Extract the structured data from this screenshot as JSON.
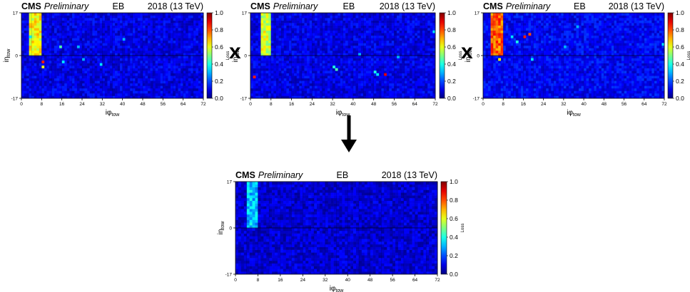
{
  "operators": {
    "times": "x"
  },
  "chart_data": [
    {
      "id": "p1",
      "type": "heatmap",
      "header": {
        "experiment": "CMS",
        "status": "Preliminary",
        "region": "EB",
        "run": "2018 (13 TeV)"
      },
      "xlabel": {
        "main": "iφ",
        "sub": "tow"
      },
      "ylabel": {
        "main": "iη",
        "sub": "tow"
      },
      "colorbar_label": "Loss",
      "xlim": [
        0,
        72
      ],
      "ylim": [
        -17,
        17
      ],
      "zlim": [
        0,
        1
      ],
      "xticks": [
        "0",
        "8",
        "16",
        "24",
        "32",
        "40",
        "48",
        "56",
        "64",
        "72"
      ],
      "yticks": [
        "-17",
        "0",
        "17"
      ],
      "zticks": [
        "0.0",
        "0.2",
        "0.4",
        "0.6",
        "0.8",
        "1.0"
      ],
      "background_level": 0.1,
      "hot_block": {
        "x": [
          3,
          8
        ],
        "y": [
          0,
          17
        ],
        "value": 0.62
      },
      "hot_cells": [
        {
          "x": 3,
          "y": 7,
          "v": 0.35
        },
        {
          "x": 15,
          "y": 3,
          "v": 0.45
        },
        {
          "x": 22,
          "y": 3,
          "v": 0.3
        },
        {
          "x": 16,
          "y": -3,
          "v": 0.35
        },
        {
          "x": 8,
          "y": -3,
          "v": 0.85
        },
        {
          "x": 8,
          "y": -5,
          "v": 0.6
        },
        {
          "x": 31,
          "y": -4,
          "v": 0.35
        },
        {
          "x": 24,
          "y": -2,
          "v": 0.3
        },
        {
          "x": 40,
          "y": 6,
          "v": 0.3
        }
      ]
    },
    {
      "id": "p2",
      "type": "heatmap",
      "header": {
        "experiment": "CMS",
        "status": "Preliminary",
        "region": "EB",
        "run": "2018 (13 TeV)"
      },
      "xlabel": {
        "main": "iφ",
        "sub": "tow"
      },
      "ylabel": {
        "main": "iη",
        "sub": "tow"
      },
      "colorbar_label": "Loss",
      "xlim": [
        0,
        72
      ],
      "ylim": [
        -17,
        17
      ],
      "zlim": [
        0,
        1
      ],
      "xticks": [
        "0",
        "8",
        "16",
        "24",
        "32",
        "40",
        "48",
        "56",
        "64",
        "72"
      ],
      "yticks": [
        "-17",
        "0",
        "17"
      ],
      "zticks": [
        "0.0",
        "0.2",
        "0.4",
        "0.6",
        "0.8",
        "1.0"
      ],
      "background_level": 0.1,
      "hot_block": {
        "x": [
          4,
          8
        ],
        "y": [
          0,
          17
        ],
        "value": 0.58
      },
      "hot_cells": [
        {
          "x": 1,
          "y": -9,
          "v": 0.85
        },
        {
          "x": 32,
          "y": -5,
          "v": 0.4
        },
        {
          "x": 33,
          "y": -6,
          "v": 0.45
        },
        {
          "x": 48,
          "y": -7,
          "v": 0.4
        },
        {
          "x": 49,
          "y": -8,
          "v": 0.35
        },
        {
          "x": 52,
          "y": -8,
          "v": 0.9
        },
        {
          "x": 57,
          "y": -1,
          "v": 0.3
        },
        {
          "x": 42,
          "y": 0,
          "v": 0.3
        },
        {
          "x": 71,
          "y": 9,
          "v": 0.35
        }
      ]
    },
    {
      "id": "p3",
      "type": "heatmap",
      "header": {
        "experiment": "CMS",
        "status": "Preliminary",
        "region": "EB",
        "run": "2018 (13 TeV)"
      },
      "xlabel": {
        "main": "iφ",
        "sub": "tow"
      },
      "ylabel": {
        "main": "iη",
        "sub": "tow"
      },
      "colorbar_label": "Loss",
      "xlim": [
        0,
        72
      ],
      "ylim": [
        -17,
        17
      ],
      "zlim": [
        0,
        1
      ],
      "xticks": [
        "0",
        "8",
        "16",
        "24",
        "32",
        "40",
        "48",
        "56",
        "64",
        "72"
      ],
      "yticks": [
        "-17",
        "0",
        "17"
      ],
      "zticks": [
        "0.0",
        "0.2",
        "0.4",
        "0.6",
        "0.8",
        "1.0"
      ],
      "background_level": 0.12,
      "hot_block": {
        "x": [
          3,
          8
        ],
        "y": [
          0,
          17
        ],
        "value": 0.78
      },
      "hot_cells": [
        {
          "x": 13,
          "y": 5,
          "v": 0.4
        },
        {
          "x": 11,
          "y": 7,
          "v": 0.35
        },
        {
          "x": 16,
          "y": 7,
          "v": 0.85
        },
        {
          "x": 18,
          "y": 8,
          "v": 0.8
        },
        {
          "x": 6,
          "y": -2,
          "v": 0.62
        },
        {
          "x": 19,
          "y": -2,
          "v": 0.35
        },
        {
          "x": 32,
          "y": 3,
          "v": 0.3
        },
        {
          "x": 71,
          "y": 4,
          "v": 0.35
        },
        {
          "x": 37,
          "y": 11,
          "v": 0.3
        }
      ]
    },
    {
      "id": "p4",
      "type": "heatmap",
      "header": {
        "experiment": "CMS",
        "status": "Preliminary",
        "region": "EB",
        "run": "2018 (13 TeV)"
      },
      "xlabel": {
        "main": "iφ",
        "sub": "tow"
      },
      "ylabel": {
        "main": "iη",
        "sub": "tow"
      },
      "colorbar_label": "Loss",
      "xlim": [
        0,
        72
      ],
      "ylim": [
        -17,
        17
      ],
      "zlim": [
        0,
        1
      ],
      "xticks": [
        "0",
        "8",
        "16",
        "24",
        "32",
        "40",
        "48",
        "56",
        "64",
        "72"
      ],
      "yticks": [
        "-17",
        "0",
        "17"
      ],
      "zticks": [
        "0.0",
        "0.2",
        "0.4",
        "0.6",
        "0.8",
        "1.0"
      ],
      "background_level": 0.08,
      "hot_block": {
        "x": [
          4,
          8
        ],
        "y": [
          0,
          17
        ],
        "value": 0.32
      },
      "hot_cells": []
    }
  ]
}
